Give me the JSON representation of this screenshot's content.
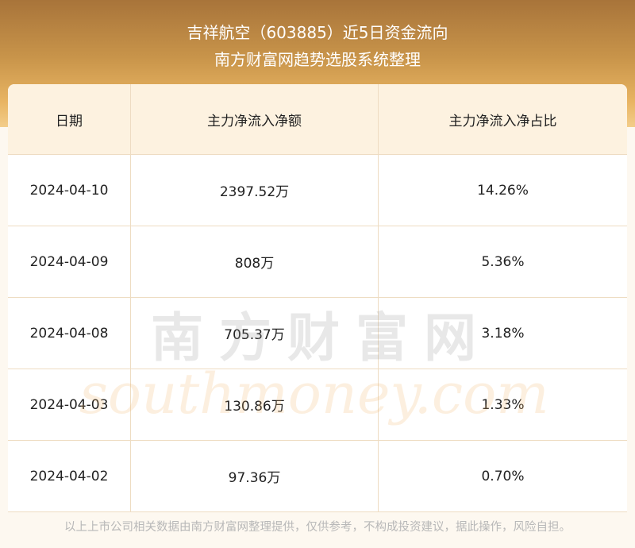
{
  "header": {
    "title": "吉祥航空（603885）近5日资金流向",
    "subtitle": "南方财富网趋势选股系统整理"
  },
  "table": {
    "columns": [
      "日期",
      "主力净流入净额",
      "主力净流入净占比"
    ],
    "rows": [
      [
        "2024-04-10",
        "2397.52万",
        "14.26%"
      ],
      [
        "2024-04-09",
        "808万",
        "5.36%"
      ],
      [
        "2024-04-08",
        "705.37万",
        "3.18%"
      ],
      [
        "2024-04-03",
        "130.86万",
        "1.33%"
      ],
      [
        "2024-04-02",
        "97.36万",
        "0.70%"
      ]
    ]
  },
  "watermark": {
    "brand": "南方财富网",
    "site": "southmoney.com"
  },
  "footer": {
    "note": "以上上市公司相关数据由南方财富网整理提供，仅供参考，不构成投资建议，据此操作，风险自担。"
  }
}
